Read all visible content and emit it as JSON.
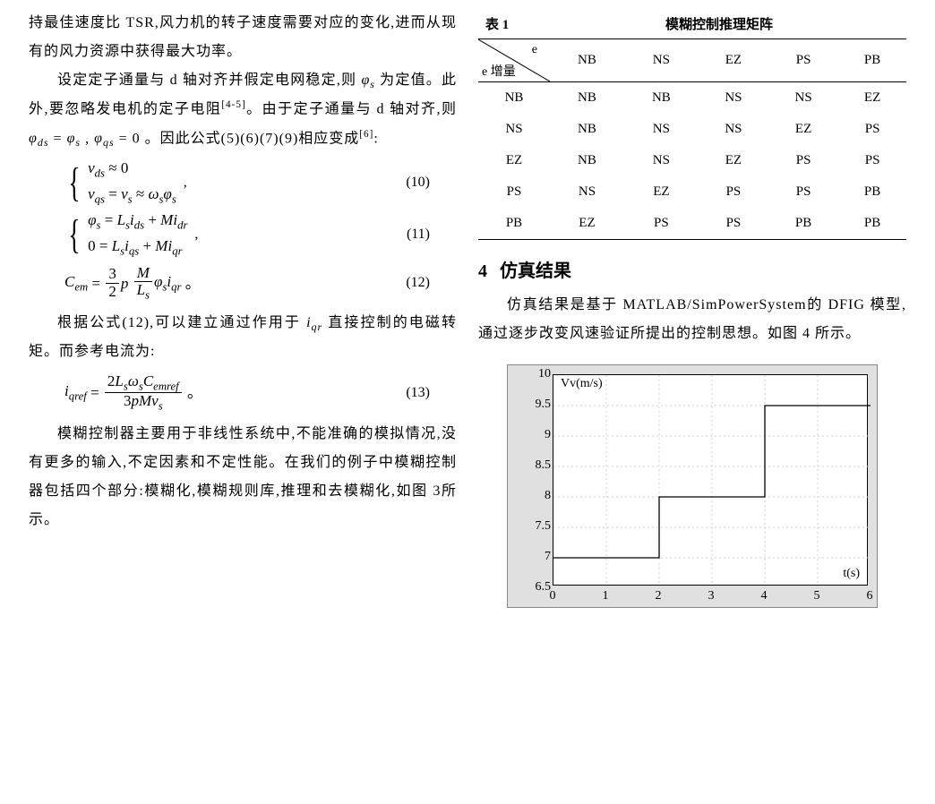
{
  "left": {
    "p1a": "持最佳速度比 TSR,风力机的转子速度需要对应的变化,进而从现有的风力资源中获得最大功率。",
    "p1b_a": "设定定子通量与 d 轴对齐并假定电网稳定,则 ",
    "p1b_b": "为定值。此外,要忽略发电机的定子电阻",
    "p1b_sup": "[4-5]",
    "p1b_c": "。由于定子通量与 d 轴对齐,则 ",
    "p1b_d": " = 0 。因此公式(5)(6)(7)(9)相应变成",
    "p1b_sup2": "[6]",
    "p1b_e": ":",
    "eq10_num": "(10)",
    "eq11_num": "(11)",
    "eq12_num": "(12)",
    "eq13_num": "(13)",
    "p2a": "根据公式(12),可以建立通过作用于 ",
    "p2b": " 直接控制的电磁转矩。而参考电流为:",
    "p3": "模糊控制器主要用于非线性系统中,不能准确的模拟情况,没有更多的输入,不定因素和不定性能。在我们的例子中模糊控制器包括四个部分:模糊化,模糊规则库,推理和去模糊化,如图 3所示。"
  },
  "sym": {
    "phi_s": "φₛ",
    "phi_ds": "φ_ds",
    "phi_qs": "φ_qs",
    "iqr": "i_qr"
  },
  "table": {
    "caption_left": "表 1",
    "caption_title": "模糊控制推理矩阵",
    "diag_top": "e",
    "diag_bottom": "e 增量",
    "cols": [
      "NB",
      "NS",
      "EZ",
      "PS",
      "PB"
    ],
    "rows_h": [
      "NB",
      "NS",
      "EZ",
      "PS",
      "PB"
    ],
    "cells": [
      [
        "NB",
        "NB",
        "NS",
        "NS",
        "EZ"
      ],
      [
        "NB",
        "NS",
        "NS",
        "EZ",
        "PS"
      ],
      [
        "NB",
        "NS",
        "EZ",
        "PS",
        "PS"
      ],
      [
        "NS",
        "EZ",
        "PS",
        "PS",
        "PB"
      ],
      [
        "EZ",
        "PS",
        "PS",
        "PB",
        "PB"
      ]
    ]
  },
  "section4": {
    "num": "4",
    "title": "仿真结果"
  },
  "right_para": "仿真结果是基于 MATLAB/SimPowerSystem的 DFIG 模型,通过逐步改变风速验证所提出的控制思想。如图 4 所示。",
  "chart": {
    "y_label": "Vv(m/s)",
    "x_label": "t(s)",
    "ylim": [
      6.5,
      10
    ],
    "yticks": [
      6.5,
      7,
      7.5,
      8,
      8.5,
      9,
      9.5,
      10
    ],
    "xlim": [
      0,
      6
    ],
    "xticks": [
      0,
      1,
      2,
      3,
      4,
      5,
      6
    ],
    "grid_color": "#cfcfcf",
    "bg_outer": "#e0e0e0",
    "bg_inner": "#ffffff",
    "series_color": "#000000",
    "series": [
      {
        "x": 0.0,
        "y": 7.0
      },
      {
        "x": 2.0,
        "y": 7.0
      },
      {
        "x": 2.0,
        "y": 8.0
      },
      {
        "x": 4.0,
        "y": 8.0
      },
      {
        "x": 4.0,
        "y": 9.5
      },
      {
        "x": 6.0,
        "y": 9.5
      }
    ]
  }
}
